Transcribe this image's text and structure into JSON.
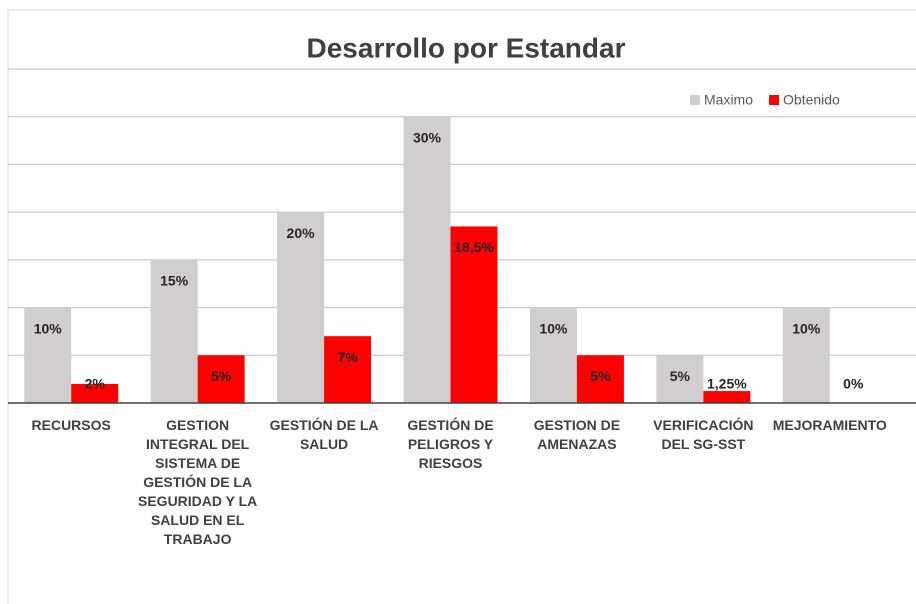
{
  "chart_data": {
    "type": "bar",
    "title": "Desarrollo por Estandar",
    "categories": [
      "RECURSOS",
      "GESTION INTEGRAL DEL SISTEMA DE GESTIÓN DE LA SEGURIDAD Y LA SALUD EN EL TRABAJO",
      "GESTIÓN DE LA SALUD",
      "GESTIÓN DE PELIGROS Y RIESGOS",
      "GESTION DE AMENAZAS",
      "VERIFICACIÓN DEL SG-SST",
      "MEJORAMIENTO"
    ],
    "series": [
      {
        "name": "Maximo",
        "color": "#d0cece",
        "values": [
          10,
          15,
          20,
          30,
          10,
          5,
          10
        ],
        "value_labels": [
          "10%",
          "15%",
          "20%",
          "30%",
          "10%",
          "5%",
          "10%"
        ]
      },
      {
        "name": "Obtenido",
        "color": "#ff0000",
        "values": [
          2,
          5,
          7,
          18.5,
          5,
          1.25,
          0
        ],
        "value_labels": [
          "2%",
          "5%",
          "7%",
          "18,5%",
          "5%",
          "1,25%",
          "0%"
        ]
      }
    ],
    "ylim": [
      0,
      35
    ],
    "yticks": [
      0,
      5,
      10,
      15,
      20,
      25,
      30,
      35
    ],
    "grid": true,
    "legend": "top-right"
  }
}
